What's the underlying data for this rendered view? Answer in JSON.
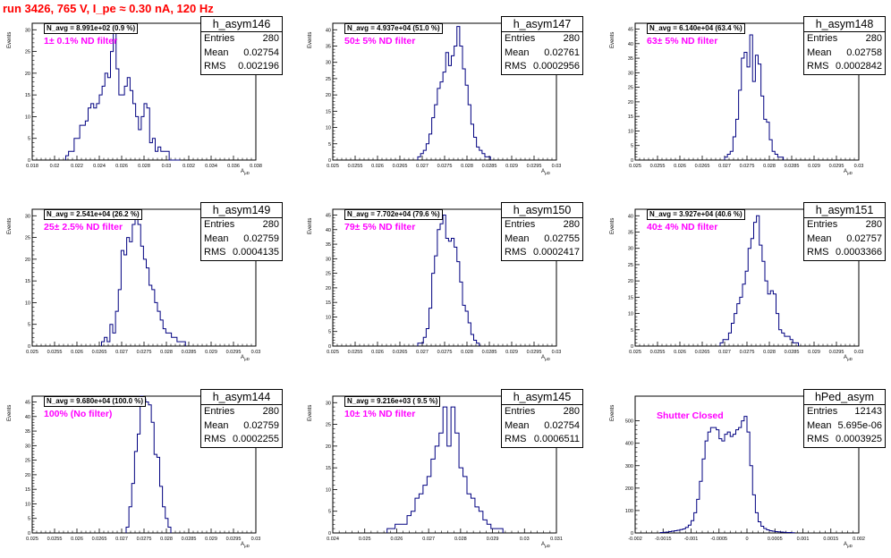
{
  "header": {
    "title": "run 3426,   765 V, I_pe ≈ 0.30 nA, 120 Hz"
  },
  "common": {
    "y_axis_label": "Events",
    "x_axis_label": "A",
    "x_axis_sub": "μD"
  },
  "panels": [
    {
      "name": "h_asym146",
      "entries": "280",
      "mean": "0.02754",
      "rms": "0.002196",
      "navg": "N_avg = 8.991e+02 (0.9 %)",
      "filter": "1± 0.1% ND filter",
      "xticks": [
        "0.018",
        "0.02",
        "0.022",
        "0.024",
        "0.026",
        "0.028",
        "0.03",
        "0.032",
        "0.034",
        "0.036",
        "0.038"
      ],
      "yticks": [
        "0",
        "5",
        "10",
        "15",
        "20",
        "25",
        "30"
      ]
    },
    {
      "name": "h_asym147",
      "entries": "280",
      "mean": "0.02761",
      "rms": "0.0002956",
      "navg": "N_avg = 4.937e+04 (51.0 %)",
      "filter": "50± 5% ND filter",
      "xticks": [
        "0.025",
        "0.0255",
        "0.026",
        "0.0265",
        "0.027",
        "0.0275",
        "0.028",
        "0.0285",
        "0.029",
        "0.0295",
        "0.03"
      ],
      "yticks": [
        "0",
        "5",
        "10",
        "15",
        "20",
        "25",
        "30",
        "35",
        "40"
      ]
    },
    {
      "name": "h_asym148",
      "entries": "280",
      "mean": "0.02758",
      "rms": "0.0002842",
      "navg": "N_avg = 6.140e+04 (63.4 %)",
      "filter": "63± 5% ND filter",
      "xticks": [
        "0.025",
        "0.0255",
        "0.026",
        "0.0265",
        "0.027",
        "0.0275",
        "0.028",
        "0.0285",
        "0.029",
        "0.0295",
        "0.03"
      ],
      "yticks": [
        "0",
        "5",
        "10",
        "15",
        "20",
        "25",
        "30",
        "35",
        "40",
        "45"
      ]
    },
    {
      "name": "h_asym149",
      "entries": "280",
      "mean": "0.02759",
      "rms": "0.0004135",
      "navg": "N_avg = 2.541e+04 (26.2 %)",
      "filter": "25± 2.5% ND filter",
      "xticks": [
        "0.025",
        "0.0255",
        "0.026",
        "0.0265",
        "0.027",
        "0.0275",
        "0.028",
        "0.0285",
        "0.029",
        "0.0295",
        "0.03"
      ],
      "yticks": [
        "0",
        "5",
        "10",
        "15",
        "20",
        "25",
        "30"
      ]
    },
    {
      "name": "h_asym150",
      "entries": "280",
      "mean": "0.02755",
      "rms": "0.0002417",
      "navg": "N_avg = 7.702e+04 (79.6 %)",
      "filter": "79± 5% ND filter",
      "xticks": [
        "0.025",
        "0.0255",
        "0.026",
        "0.0265",
        "0.027",
        "0.0275",
        "0.028",
        "0.0285",
        "0.029",
        "0.0295",
        "0.03"
      ],
      "yticks": [
        "0",
        "5",
        "10",
        "15",
        "20",
        "25",
        "30",
        "35",
        "40",
        "45"
      ]
    },
    {
      "name": "h_asym151",
      "entries": "280",
      "mean": "0.02757",
      "rms": "0.0003366",
      "navg": "N_avg = 3.927e+04 (40.6 %)",
      "filter": "40± 4% ND filter",
      "xticks": [
        "0.025",
        "0.0255",
        "0.026",
        "0.0265",
        "0.027",
        "0.0275",
        "0.028",
        "0.0285",
        "0.029",
        "0.0295",
        "0.03"
      ],
      "yticks": [
        "0",
        "5",
        "10",
        "15",
        "20",
        "25",
        "30",
        "35",
        "40"
      ]
    },
    {
      "name": "h_asym144",
      "entries": "280",
      "mean": "0.02759",
      "rms": "0.0002255",
      "navg": "N_avg = 9.680e+04 (100.0 %)",
      "filter": "100% (No filter)",
      "xticks": [
        "0.025",
        "0.0255",
        "0.026",
        "0.0265",
        "0.027",
        "0.0275",
        "0.028",
        "0.0285",
        "0.029",
        "0.0295",
        "0.03"
      ],
      "yticks": [
        "0",
        "5",
        "10",
        "15",
        "20",
        "25",
        "30",
        "35",
        "40",
        "45"
      ]
    },
    {
      "name": "h_asym145",
      "entries": "280",
      "mean": "0.02754",
      "rms": "0.0006511",
      "navg": "N_avg = 9.216e+03 ( 9.5 %)",
      "filter": "10± 1% ND filter",
      "xticks": [
        "0.024",
        "0.025",
        "0.026",
        "0.027",
        "0.028",
        "0.029",
        "0.03",
        "0.031"
      ],
      "yticks": [
        "0",
        "5",
        "10",
        "15",
        "20",
        "25",
        "30"
      ]
    },
    {
      "name": "hPed_asym",
      "entries": "12143",
      "mean": "5.695e-06",
      "rms": "0.0003925",
      "navg": "",
      "filter": "Shutter Closed",
      "xticks": [
        "-0.002",
        "-0.0015",
        "-0.001",
        "-0.0005",
        "0",
        "0.0005",
        "0.001",
        "0.0015",
        "0.002"
      ],
      "yticks": [
        "0",
        "100",
        "200",
        "300",
        "400",
        "500"
      ]
    }
  ],
  "chart_data": [
    {
      "type": "bar",
      "title": "h_asym146",
      "xlim": [
        0.018,
        0.038
      ],
      "ylim": [
        0,
        31.5
      ],
      "bin_start": 0.021,
      "bin_width": 0.00025,
      "counts": [
        1,
        2,
        2,
        5,
        5,
        8,
        8,
        9,
        12,
        13,
        12,
        13,
        15,
        17,
        20,
        19,
        25,
        30,
        21,
        15,
        15,
        17,
        19,
        16,
        13,
        10,
        7,
        10,
        13,
        12,
        4,
        5,
        2,
        3,
        2,
        2,
        2,
        0,
        0,
        0,
        0
      ]
    },
    {
      "type": "bar",
      "title": "h_asym147",
      "xlim": [
        0.025,
        0.03
      ],
      "ylim": [
        0,
        42
      ],
      "bin_start": 0.0269,
      "bin_width": 6.25e-05,
      "counts": [
        1,
        2,
        3,
        5,
        8,
        13,
        17,
        22,
        24,
        27,
        33,
        29,
        32,
        35,
        41,
        35,
        28,
        23,
        17,
        11,
        7,
        4,
        3,
        2,
        1,
        1
      ]
    },
    {
      "type": "bar",
      "title": "h_asym148",
      "xlim": [
        0.025,
        0.03
      ],
      "ylim": [
        0,
        47
      ],
      "bin_start": 0.027,
      "bin_width": 6.25e-05,
      "counts": [
        1,
        2,
        3,
        8,
        14,
        24,
        35,
        37,
        32,
        43,
        27,
        36,
        33,
        22,
        14,
        13,
        7,
        3,
        2,
        1,
        1
      ]
    },
    {
      "type": "bar",
      "title": "h_asym149",
      "xlim": [
        0.025,
        0.03
      ],
      "ylim": [
        0,
        31.5
      ],
      "bin_start": 0.02655,
      "bin_width": 6.25e-05,
      "counts": [
        1,
        2,
        1,
        5,
        3,
        8,
        13,
        22,
        21,
        25,
        24,
        28,
        30,
        28,
        23,
        20,
        18,
        14,
        13,
        10,
        8,
        6,
        4,
        3,
        3,
        2,
        2,
        1,
        1,
        1
      ]
    },
    {
      "type": "bar",
      "title": "h_asym150",
      "xlim": [
        0.025,
        0.03
      ],
      "ylim": [
        0,
        47
      ],
      "bin_start": 0.0269,
      "bin_width": 6.25e-05,
      "counts": [
        1,
        1,
        3,
        6,
        13,
        25,
        31,
        40,
        42,
        45,
        37,
        36,
        37,
        34,
        29,
        22,
        14,
        12,
        8,
        4,
        2,
        1
      ]
    },
    {
      "type": "bar",
      "title": "h_asym151",
      "xlim": [
        0.025,
        0.03
      ],
      "ylim": [
        0,
        42
      ],
      "bin_start": 0.0269,
      "bin_width": 6.25e-05,
      "counts": [
        1,
        2,
        2,
        4,
        7,
        10,
        13,
        15,
        19,
        23,
        30,
        33,
        38,
        40,
        31,
        26,
        20,
        16,
        17,
        16,
        10,
        5,
        4,
        3,
        3,
        2,
        1,
        1
      ]
    },
    {
      "type": "bar",
      "title": "h_asym144",
      "xlim": [
        0.025,
        0.03
      ],
      "ylim": [
        0,
        47
      ],
      "bin_start": 0.0271,
      "bin_width": 6.25e-05,
      "counts": [
        2,
        9,
        17,
        28,
        34,
        47,
        46,
        45,
        44,
        38,
        27,
        26,
        16,
        9,
        5,
        2
      ]
    },
    {
      "type": "bar",
      "title": "h_asym145",
      "xlim": [
        0.024,
        0.031
      ],
      "ylim": [
        0,
        31.5
      ],
      "bin_start": 0.0257,
      "bin_width": 0.000125,
      "counts": [
        1,
        1,
        2,
        2,
        2,
        4,
        5,
        8,
        9,
        11,
        13,
        17,
        20,
        23,
        29,
        20,
        29,
        23,
        15,
        13,
        9,
        8,
        6,
        5,
        3,
        2,
        1,
        1,
        1
      ]
    },
    {
      "type": "bar",
      "title": "hPed_asym",
      "xlim": [
        -0.002,
        0.002
      ],
      "ylim": [
        0,
        610
      ],
      "bin_start": -0.00155,
      "bin_width": 5e-05,
      "counts": [
        2,
        3,
        4,
        6,
        8,
        10,
        12,
        15,
        18,
        25,
        35,
        55,
        90,
        150,
        230,
        330,
        410,
        450,
        470,
        470,
        460,
        420,
        410,
        440,
        450,
        430,
        440,
        460,
        470,
        500,
        520,
        450,
        300,
        170,
        90,
        50,
        30,
        20,
        14,
        10,
        8,
        6,
        5,
        4,
        3,
        2,
        2,
        1
      ]
    }
  ]
}
